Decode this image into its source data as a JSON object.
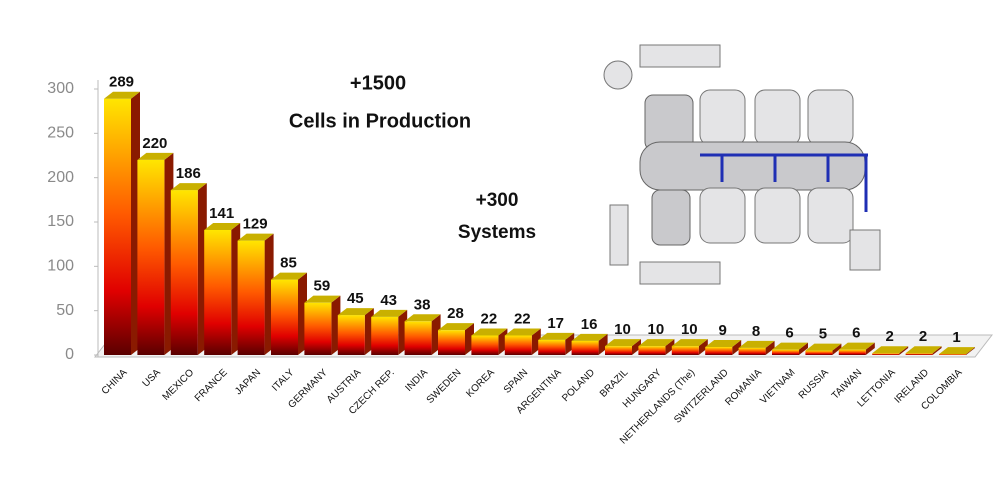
{
  "chart_data": {
    "type": "bar3d",
    "categories": [
      "CHINA",
      "USA",
      "MEXICO",
      "FRANCE",
      "JAPAN",
      "ITALY",
      "GERMANY",
      "AUSTRIA",
      "CZECH REP.",
      "INDIA",
      "SWEDEN",
      "KOREA",
      "SPAIN",
      "ARGENTINA",
      "POLAND",
      "BRAZIL",
      "HUNGARY",
      "NETHERLANDS (The)",
      "SWITZERLAND",
      "ROMANIA",
      "VIETNAM",
      "RUSSIA",
      "TAIWAN",
      "LETTONIA",
      "IRELAND",
      "COLOMBIA"
    ],
    "values": [
      289,
      220,
      186,
      141,
      129,
      85,
      59,
      45,
      43,
      38,
      28,
      22,
      22,
      17,
      16,
      10,
      10,
      10,
      9,
      8,
      6,
      5,
      6,
      2,
      2,
      1
    ],
    "ylim": [
      0,
      300
    ],
    "yticks": [
      0,
      50,
      100,
      150,
      200,
      250,
      300
    ],
    "annotations": [
      "+1500",
      "Cells in Production",
      "+300",
      "Systems"
    ],
    "colors": {
      "top": "#ffe600",
      "bottom": "#5a0000",
      "cap": "#c9b000"
    }
  }
}
